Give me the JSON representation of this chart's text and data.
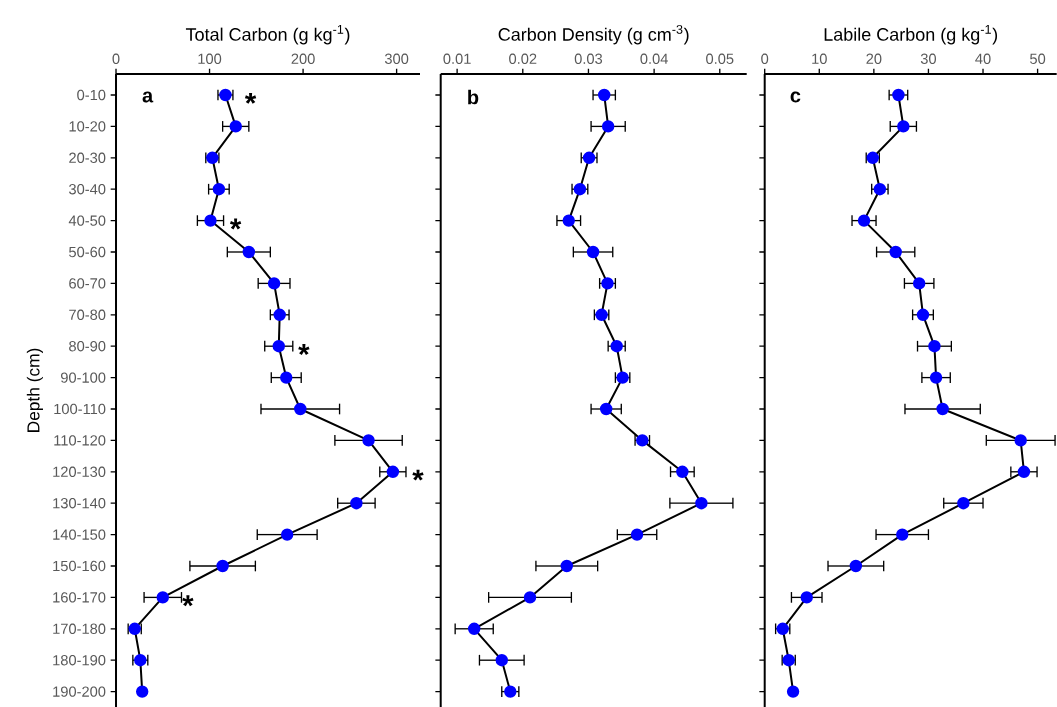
{
  "chart_data": [
    {
      "type": "line",
      "orientation": "horizontal",
      "xlabel": "Total Carbon (g kg$^{-1}$)",
      "ylabel": "Depth (cm)",
      "xlim": [
        0,
        325
      ],
      "xticks": [
        0,
        100,
        200,
        300
      ],
      "marker": "circle",
      "line_style": "solid",
      "categories": [
        "0-10",
        "10-20",
        "20-30",
        "30-40",
        "40-50",
        "50-60",
        "60-70",
        "70-80",
        "80-90",
        "90-100",
        "100-110",
        "110-120",
        "120-130",
        "130-140",
        "140-150",
        "150-160",
        "160-170",
        "170-180",
        "180-190",
        "190-200"
      ],
      "series": [
        {
          "color": "#0000ff",
          "values": [
            117,
            128,
            103,
            110,
            101,
            142,
            169,
            175,
            174,
            182,
            197,
            270,
            296,
            257,
            183,
            114,
            50,
            20,
            26,
            28
          ],
          "errors": [
            8,
            14,
            7,
            11,
            14,
            23,
            17,
            10,
            15,
            16,
            42,
            36,
            14,
            20,
            32,
            35,
            20,
            7,
            8,
            null
          ]
        }
      ],
      "annotations": [
        "a",
        {
          "text": "*",
          "x": 117,
          "y": "0-10"
        },
        {
          "text": "*",
          "x": 101,
          "y": "40-50"
        },
        {
          "text": "*",
          "x": 174,
          "y": "80-90"
        },
        {
          "text": "*",
          "x": 296,
          "y": "120-130"
        },
        {
          "text": "*",
          "x": 50,
          "y": "160-170"
        }
      ]
    },
    {
      "type": "line",
      "orientation": "horizontal",
      "xlabel": "Carbon Density (g cm$^{-3}$)",
      "xlim": [
        0.0075,
        0.0541
      ],
      "xticks": [
        0.01,
        0.02,
        0.03,
        0.04,
        0.05
      ],
      "marker": "circle",
      "line_style": "solid",
      "tick_labels": "x",
      "series": [
        {
          "color": "#0000ff",
          "values": [
            0.0324,
            0.033,
            0.0301,
            0.0287,
            0.027,
            0.0307,
            0.0329,
            0.032,
            0.0343,
            0.0352,
            0.0327,
            0.0382,
            0.0443,
            0.0472,
            0.0374,
            0.0267,
            0.0211,
            0.0126,
            0.0168,
            0.0181
          ],
          "errors": [
            0.0017,
            0.0026,
            0.0012,
            0.0012,
            0.0018,
            0.003,
            0.0012,
            0.0011,
            0.0013,
            0.0011,
            0.0023,
            0.0011,
            0.0018,
            0.0048,
            0.003,
            0.0047,
            0.0063,
            0.0029,
            0.0034,
            0.0013
          ]
        }
      ],
      "annotations": [
        "b"
      ]
    },
    {
      "type": "line",
      "orientation": "horizontal",
      "xlabel": "Labile Carbon (g kg$^{-1}$)",
      "xlim": [
        0,
        53.5
      ],
      "xticks": [
        0,
        10,
        20,
        30,
        40,
        50
      ],
      "marker": "circle",
      "line_style": "solid",
      "tick_labels": "x",
      "series": [
        {
          "color": "#0000ff",
          "values": [
            24.5,
            25.4,
            19.8,
            21.1,
            18.2,
            24,
            28.3,
            29,
            31.1,
            31.4,
            32.6,
            46.9,
            47.5,
            36.4,
            25.2,
            16.7,
            7.7,
            3.3,
            4.4,
            5.2
          ],
          "errors": [
            1.7,
            2.4,
            1.2,
            1.5,
            2.2,
            3.5,
            2.7,
            1.9,
            3.1,
            2.6,
            6.9,
            6.3,
            2.4,
            3.6,
            4.8,
            5.1,
            2.8,
            1.3,
            1.2,
            null
          ]
        }
      ],
      "annotations": [
        "c"
      ]
    }
  ]
}
